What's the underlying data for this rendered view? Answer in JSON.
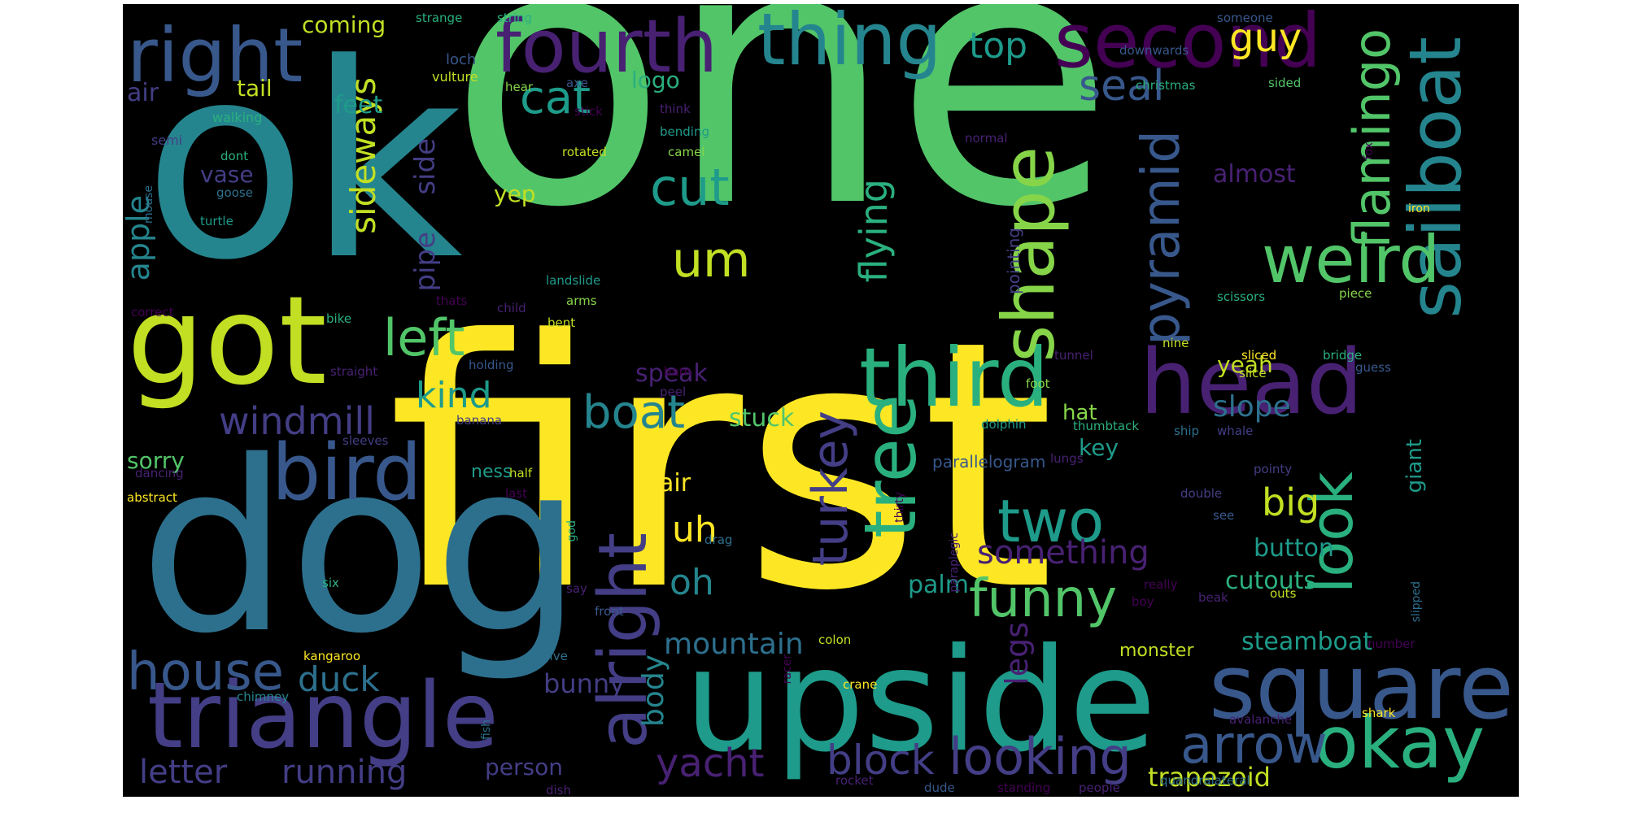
{
  "colors": {
    "background": "#000000",
    "palette": [
      "#fde725",
      "#c2df23",
      "#86d549",
      "#52c569",
      "#2ab07f",
      "#1e9b8a",
      "#25858e",
      "#2d708e",
      "#38588c",
      "#433e85",
      "#482173",
      "#440154"
    ]
  },
  "words": {
    "one": "one",
    "first": "first",
    "ok": "ok",
    "dog": "dog",
    "got": "got",
    "upside": "upside",
    "triangle": "triangle",
    "second": "second",
    "fourth": "fourth",
    "thing": "thing",
    "right": "right",
    "square": "square",
    "head": "head",
    "third": "third",
    "sailboat": "sailboat",
    "weird": "weird",
    "bird": "bird",
    "left": "left",
    "alright": "alright",
    "tree": "tree",
    "two": "two",
    "shape": "shape",
    "okay": "okay",
    "look": "look",
    "house": "house",
    "arrow": "arrow",
    "looking": "looking",
    "pyramid": "pyramid",
    "flamingo": "flamingo",
    "turkey": "turkey",
    "funny": "funny",
    "cut": "cut",
    "um": "um",
    "cat": "cat",
    "boat": "boat",
    "windmill": "windmill",
    "letter": "letter",
    "running": "running",
    "block": "block",
    "yacht": "yacht",
    "seal": "seal",
    "guy": "guy",
    "top": "top",
    "sideways": "sideways",
    "flying": "flying",
    "something": "something",
    "duck": "duck",
    "kind": "kind",
    "mountain": "mountain",
    "big": "big",
    "oh": "oh",
    "uh": "uh",
    "apple": "apple",
    "pipe": "pipe",
    "side": "side",
    "body": "body",
    "legs": "legs",
    "slope": "slope",
    "trapezoid": "trapezoid",
    "steamboat": "steamboat",
    "cutouts": "cutouts",
    "button": "button",
    "bunny": "bunny",
    "palm": "palm",
    "stuck": "stuck",
    "pair": "pair",
    "speak": "speak",
    "almost": "almost",
    "yep": "yep",
    "feet": "feet",
    "logo": "logo",
    "tail": "tail",
    "coming": "coming",
    "air": "air",
    "vase": "vase",
    "sorry": "sorry",
    "person": "person",
    "yeah": "yeah",
    "key": "key",
    "hat": "hat",
    "parallelogram": "parallelogram",
    "monster": "monster",
    "giant": "giant",
    "pointing": "pointing",
    "ness": "ness",
    "loch": "loch",
    "vulture": "vulture",
    "walking": "walking",
    "semi": "semi",
    "dont": "dont",
    "goose": "goose",
    "turtle": "turtle",
    "mouse": "mouse",
    "rotated": "rotated",
    "camel": "camel",
    "bending": "bending",
    "think": "think",
    "stick": "stick",
    "axe": "axe",
    "hear": "hear",
    "strange": "strange",
    "string": "string",
    "someone": "someone",
    "christmas": "christmas",
    "sided": "sided",
    "normal": "normal",
    "downwards": "downwards",
    "fox": "fox",
    "iron": "iron",
    "landslide": "landslide",
    "arms": "arms",
    "bike": "bike",
    "thats": "thats",
    "child": "child",
    "bent": "bent",
    "correct": "correct",
    "straight": "straight",
    "holding": "holding",
    "scissors": "scissors",
    "piece": "piece",
    "nine": "nine",
    "tunnel": "tunnel",
    "bridge": "bridge",
    "sliced": "sliced",
    "slice": "slice",
    "guess": "guess",
    "foot": "foot",
    "barn": "barn",
    "peel": "peel",
    "banana": "banana",
    "dolphin": "dolphin",
    "whale": "whale",
    "ship": "ship",
    "thumbtack": "thumbtack",
    "lungs": "lungs",
    "sleeves": "sleeves",
    "dancing": "dancing",
    "abstract": "abstract",
    "half": "half",
    "last": "last",
    "double": "double",
    "see": "see",
    "pointy": "pointy",
    "thirty": "thirty",
    "drag": "drag",
    "god": "god",
    "six": "six",
    "really": "really",
    "boy": "boy",
    "beak": "beak",
    "say": "say",
    "front": "front",
    "paraplegic": "paraplegic",
    "outs": "outs",
    "slipped": "slipped",
    "number": "number",
    "kangaroo": "kangaroo",
    "give": "give",
    "colon": "colon",
    "racer": "racer",
    "crane": "crane",
    "chimney": "chimney",
    "fish": "fish",
    "dish": "dish",
    "avalanche": "avalanche",
    "rocket": "rocket",
    "dude": "dude",
    "standing": "standing",
    "people": "people",
    "quandralateral": "quandralateral",
    "shark": "shark"
  }
}
